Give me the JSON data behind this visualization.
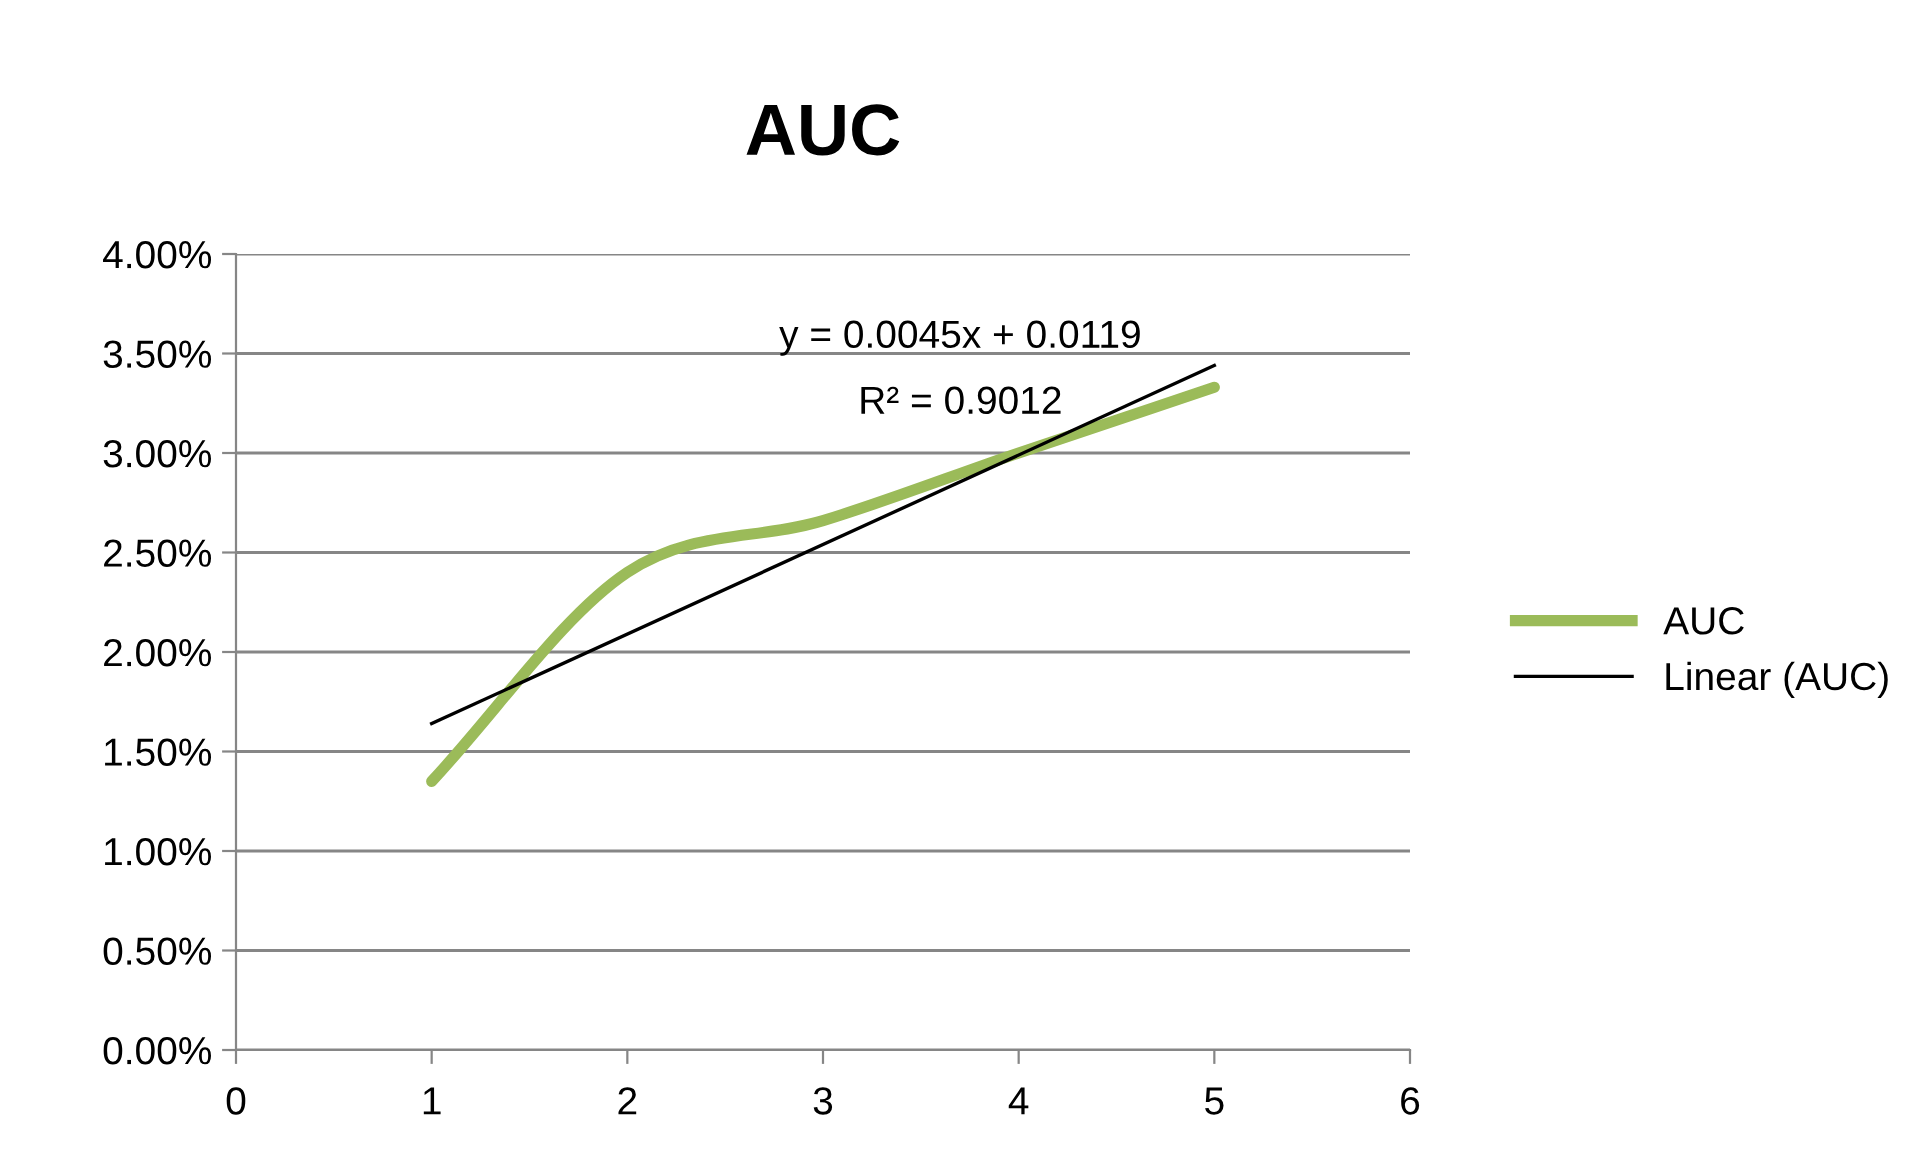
{
  "chart_data": {
    "type": "line",
    "title": "AUC",
    "x": [
      1,
      2,
      3,
      4,
      5
    ],
    "series": [
      {
        "name": "AUC",
        "color": "#9bbb59",
        "values": [
          1.35,
          2.4,
          2.66,
          3.0,
          3.33
        ]
      },
      {
        "name": "Linear (AUC)",
        "type": "line",
        "color": "#000000",
        "x": [
          1,
          5
        ],
        "values": [
          1.64,
          3.44
        ]
      }
    ],
    "xlim": [
      0,
      6
    ],
    "xticks": [
      0,
      1,
      2,
      3,
      4,
      5,
      6
    ],
    "ylim": [
      0,
      4
    ],
    "yticks": [
      {
        "value": 0,
        "label": "0.00%"
      },
      {
        "value": 0.5,
        "label": "0.50%"
      },
      {
        "value": 1,
        "label": "1.00%"
      },
      {
        "value": 1.5,
        "label": "1.50%"
      },
      {
        "value": 2,
        "label": "2.00%"
      },
      {
        "value": 2.5,
        "label": "2.50%"
      },
      {
        "value": 3,
        "label": "3.00%"
      },
      {
        "value": 3.5,
        "label": "3.50%"
      },
      {
        "value": 4,
        "label": "4.00%"
      }
    ],
    "grid": "y",
    "legend": "right",
    "marker": "none",
    "line_style": "solid",
    "annotations": [
      "y = 0.0045x + 0.0119",
      "R² = 0.9012"
    ]
  }
}
